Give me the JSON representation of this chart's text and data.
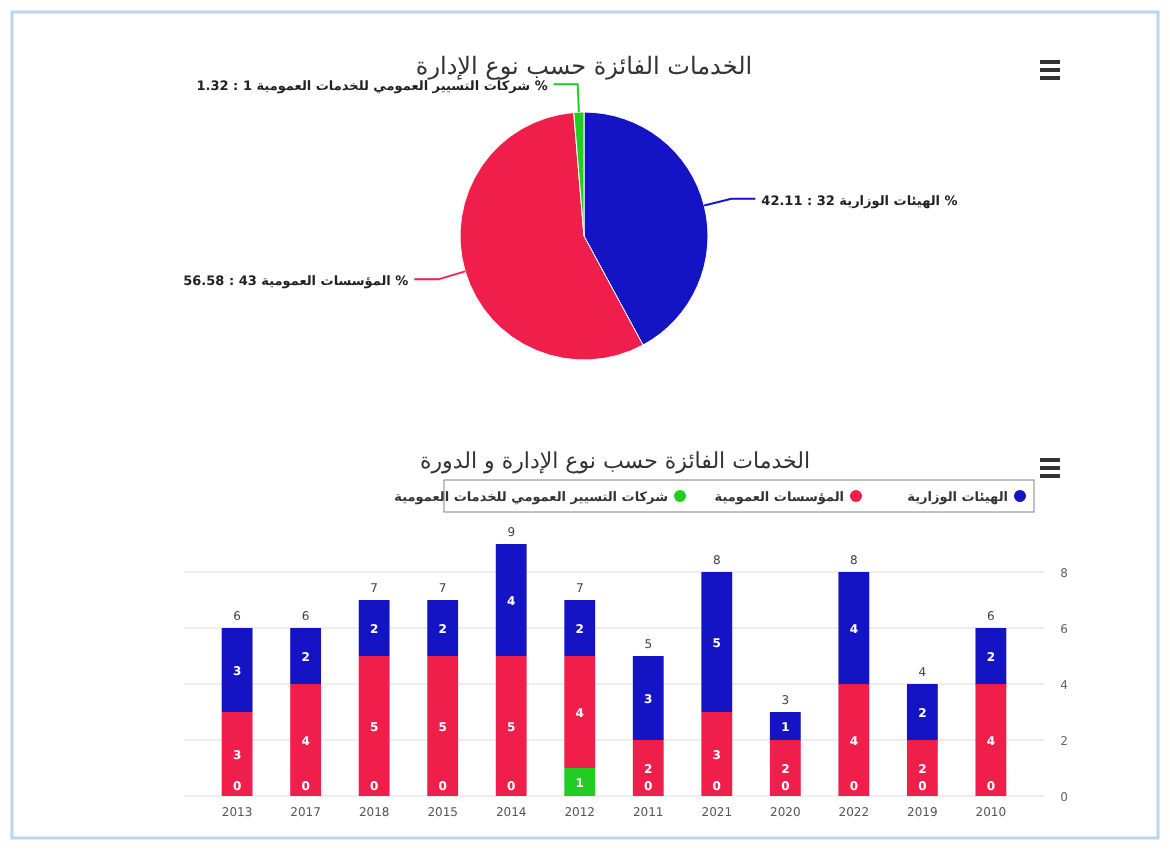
{
  "chart_data": [
    {
      "type": "pie",
      "title": "الخدمات الفائزة حسب نوع الإدارة",
      "categories": [
        "الهيئات الوزارية",
        "المؤسسات العمومية",
        "شركات التسيير العمومي للخدمات العمومية"
      ],
      "values": [
        32,
        43,
        1
      ],
      "colors": [
        "#1414c4",
        "#f01e4a",
        "#22cc22"
      ],
      "value_labels": [
        "32 : 42.11 %",
        "43 : 56.58 %",
        "1 : 1.32 %"
      ]
    },
    {
      "type": "bar",
      "title": "الخدمات الفائزة حسب نوع الإدارة و الدورة",
      "categories": [
        "2013",
        "2017",
        "2018",
        "2015",
        "2014",
        "2012",
        "2011",
        "2021",
        "2020",
        "2022",
        "2019",
        "2010"
      ],
      "series": [
        {
          "name": "شركات التسيير العمومي للخدمات العمومية",
          "color": "#22cc22",
          "values": [
            null,
            null,
            null,
            null,
            null,
            1,
            null,
            null,
            null,
            null,
            null,
            null
          ]
        },
        {
          "name": "المؤسسات العمومية",
          "color": "#f01e4a",
          "values": [
            3,
            4,
            5,
            5,
            5,
            4,
            2,
            3,
            2,
            4,
            2,
            4
          ]
        },
        {
          "name": "الهيئات الوزارية",
          "color": "#1414c4",
          "values": [
            3,
            2,
            2,
            2,
            4,
            2,
            3,
            5,
            1,
            4,
            2,
            2
          ]
        }
      ],
      "stacked": true,
      "ylim": [
        0,
        9
      ],
      "yticks": [
        0,
        2,
        4,
        6,
        8
      ],
      "grid": "y",
      "legend": "top",
      "data_labels": true,
      "totals": [
        "6",
        "6",
        "7",
        "7",
        "9",
        "7",
        "5",
        "8",
        "3",
        "8",
        "4",
        "6"
      ],
      "annotations": [
        {
          "text": "0",
          "x": "2013",
          "y": 0
        },
        {
          "text": "0",
          "x": "2017",
          "y": 0
        },
        {
          "text": "0",
          "x": "2018",
          "y": 0
        },
        {
          "text": "0",
          "x": "2015",
          "y": 0
        },
        {
          "text": "0",
          "x": "2014",
          "y": 0
        },
        {
          "text": "0",
          "x": "2011",
          "y": 0
        },
        {
          "text": "0",
          "x": "2021",
          "y": 0
        },
        {
          "text": "0",
          "x": "2020",
          "y": 0
        },
        {
          "text": "0",
          "x": "2022",
          "y": 0
        },
        {
          "text": "0",
          "x": "2019",
          "y": 0
        },
        {
          "text": "0",
          "x": "2010",
          "y": 0
        }
      ]
    }
  ]
}
